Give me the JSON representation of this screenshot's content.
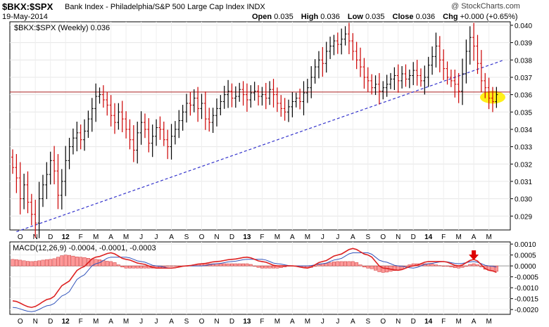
{
  "header": {
    "symbol": "$BKX:$SPX",
    "description": "Bank Index - Philadelphia/S&P 500 Large Cap Index  INDX",
    "date": "19-May-2014",
    "open_label": "Open",
    "open": "0.035",
    "high_label": "High",
    "high": "0.036",
    "low_label": "Low",
    "low": "0.035",
    "close_label": "Close",
    "close": "0.036",
    "chg_label": "Chg",
    "chg": "+0.000 (+0.65%)",
    "brand": "@ StockCharts.com"
  },
  "colors": {
    "up_bar": "#000000",
    "down_bar": "#cc0000",
    "resistance_line": "#aa2222",
    "trendline": "#3333cc",
    "highlight": "#ffee00",
    "macd_line": "#dd2222",
    "signal_line": "#3355bb",
    "histogram_fill": "#ff9999",
    "histogram_stroke": "#cc3333",
    "arrow": "#dd0000"
  },
  "chart_data": [
    {
      "type": "ohlc",
      "legend": "$BKX:$SPX (Weekly) 0.036",
      "ylim": [
        0.0282,
        0.0402
      ],
      "yticks": [
        "0.040",
        "0.039",
        "0.038",
        "0.037",
        "0.036",
        "0.035",
        "0.034",
        "0.033",
        "0.032",
        "0.031",
        "0.030",
        "0.029"
      ],
      "xticks": [
        {
          "label": "O",
          "i": 2
        },
        {
          "label": "N",
          "i": 6
        },
        {
          "label": "D",
          "i": 10
        },
        {
          "label": "12",
          "i": 14
        },
        {
          "label": "F",
          "i": 18
        },
        {
          "label": "M",
          "i": 22
        },
        {
          "label": "A",
          "i": 26
        },
        {
          "label": "M",
          "i": 30
        },
        {
          "label": "J",
          "i": 34
        },
        {
          "label": "J",
          "i": 38
        },
        {
          "label": "A",
          "i": 42
        },
        {
          "label": "S",
          "i": 46
        },
        {
          "label": "O",
          "i": 50
        },
        {
          "label": "N",
          "i": 54
        },
        {
          "label": "D",
          "i": 58
        },
        {
          "label": "13",
          "i": 62
        },
        {
          "label": "F",
          "i": 66
        },
        {
          "label": "M",
          "i": 70
        },
        {
          "label": "A",
          "i": 74
        },
        {
          "label": "M",
          "i": 78
        },
        {
          "label": "J",
          "i": 82
        },
        {
          "label": "J",
          "i": 86
        },
        {
          "label": "A",
          "i": 90
        },
        {
          "label": "S",
          "i": 94
        },
        {
          "label": "O",
          "i": 98
        },
        {
          "label": "N",
          "i": 102
        },
        {
          "label": "D",
          "i": 106
        },
        {
          "label": "14",
          "i": 110
        },
        {
          "label": "F",
          "i": 114
        },
        {
          "label": "M",
          "i": 118
        },
        {
          "label": "A",
          "i": 122
        },
        {
          "label": "M",
          "i": 126
        }
      ],
      "close": [
        0.0318,
        0.0312,
        0.03,
        0.0308,
        0.0298,
        0.0291,
        0.0286,
        0.03,
        0.0308,
        0.0314,
        0.0322,
        0.0316,
        0.0302,
        0.031,
        0.0322,
        0.033,
        0.0335,
        0.0338,
        0.0334,
        0.0339,
        0.0346,
        0.0352,
        0.0359,
        0.036,
        0.0357,
        0.0354,
        0.0348,
        0.0344,
        0.035,
        0.0346,
        0.034,
        0.0334,
        0.0328,
        0.0338,
        0.0344,
        0.034,
        0.0332,
        0.0336,
        0.0341,
        0.034,
        0.0334,
        0.033,
        0.0336,
        0.034,
        0.0345,
        0.035,
        0.0355,
        0.0354,
        0.0358,
        0.0352,
        0.0355,
        0.0346,
        0.0344,
        0.0348,
        0.0352,
        0.0356,
        0.036,
        0.0362,
        0.0358,
        0.0359,
        0.0363,
        0.036,
        0.0357,
        0.0361,
        0.0362,
        0.0359,
        0.036,
        0.0358,
        0.0363,
        0.036,
        0.0355,
        0.0352,
        0.035,
        0.0353,
        0.0356,
        0.0358,
        0.0356,
        0.0361,
        0.0364,
        0.037,
        0.0376,
        0.038,
        0.0378,
        0.0385,
        0.0388,
        0.0391,
        0.0389,
        0.0392,
        0.0395,
        0.0391,
        0.0385,
        0.038,
        0.0376,
        0.037,
        0.0368,
        0.0364,
        0.0366,
        0.0362,
        0.0364,
        0.0366,
        0.0369,
        0.0371,
        0.0368,
        0.0372,
        0.0369,
        0.0371,
        0.0374,
        0.0371,
        0.0368,
        0.037,
        0.0377,
        0.0382,
        0.0388,
        0.038,
        0.0375,
        0.037,
        0.0368,
        0.0366,
        0.0362,
        0.0372,
        0.0385,
        0.0393,
        0.0388,
        0.0378,
        0.0368,
        0.0364,
        0.0358,
        0.0356,
        0.036
      ],
      "resistance_y": 0.03615,
      "trendline": {
        "from": [
          1,
          0.0281
        ],
        "to": [
          130,
          0.038
        ]
      },
      "highlight": {
        "i": 127,
        "y": 0.03585
      }
    },
    {
      "type": "macd",
      "legend": "MACD(12,26,9) -0.0004, -0.0001, -0.0003",
      "ylim": [
        -0.00222,
        0.0011
      ],
      "yticks": [
        "0.0010",
        "0.0005",
        "0.0000",
        "-0.0005",
        "-0.0010",
        "-0.0015",
        "-0.0020"
      ],
      "macd_anchors": [
        [
          0,
          -0.0016
        ],
        [
          5,
          -0.0019
        ],
        [
          10,
          -0.0015
        ],
        [
          14,
          -0.0008
        ],
        [
          18,
          -0.0001
        ],
        [
          22,
          0.0004
        ],
        [
          26,
          0.0006
        ],
        [
          30,
          0.0003
        ],
        [
          34,
          0.0001
        ],
        [
          38,
          -0.0001
        ],
        [
          42,
          -0.0001
        ],
        [
          46,
          0.0
        ],
        [
          50,
          0.0001
        ],
        [
          54,
          0.0002
        ],
        [
          58,
          0.0003
        ],
        [
          62,
          0.0004
        ],
        [
          66,
          0.0002
        ],
        [
          70,
          0.0
        ],
        [
          74,
          0.0
        ],
        [
          78,
          -0.0001
        ],
        [
          82,
          0.0002
        ],
        [
          86,
          0.0005
        ],
        [
          90,
          0.0008
        ],
        [
          94,
          0.0005
        ],
        [
          98,
          -0.0001
        ],
        [
          102,
          -0.0002
        ],
        [
          106,
          0.0
        ],
        [
          110,
          0.0002
        ],
        [
          114,
          0.0002
        ],
        [
          118,
          0.0
        ],
        [
          122,
          0.0003
        ],
        [
          126,
          -0.0002
        ],
        [
          130,
          -0.0004
        ]
      ],
      "signal_anchors": [
        [
          0,
          -0.0019
        ],
        [
          5,
          -0.0021
        ],
        [
          10,
          -0.0018
        ],
        [
          14,
          -0.0013
        ],
        [
          18,
          -0.0005
        ],
        [
          22,
          0.0001
        ],
        [
          26,
          0.0004
        ],
        [
          30,
          0.0004
        ],
        [
          34,
          0.0002
        ],
        [
          38,
          0.0
        ],
        [
          42,
          -0.0001
        ],
        [
          46,
          0.0
        ],
        [
          50,
          0.0
        ],
        [
          54,
          0.0001
        ],
        [
          58,
          0.0002
        ],
        [
          62,
          0.0003
        ],
        [
          66,
          0.0003
        ],
        [
          70,
          0.0001
        ],
        [
          74,
          0.0
        ],
        [
          78,
          0.0
        ],
        [
          82,
          0.0001
        ],
        [
          86,
          0.0003
        ],
        [
          90,
          0.0006
        ],
        [
          94,
          0.0006
        ],
        [
          98,
          0.0002
        ],
        [
          102,
          0.0
        ],
        [
          106,
          -0.0001
        ],
        [
          110,
          0.0001
        ],
        [
          114,
          0.0002
        ],
        [
          118,
          0.0001
        ],
        [
          122,
          0.0002
        ],
        [
          126,
          0.0
        ],
        [
          130,
          -0.0001
        ]
      ],
      "arrow_index": 122
    }
  ]
}
